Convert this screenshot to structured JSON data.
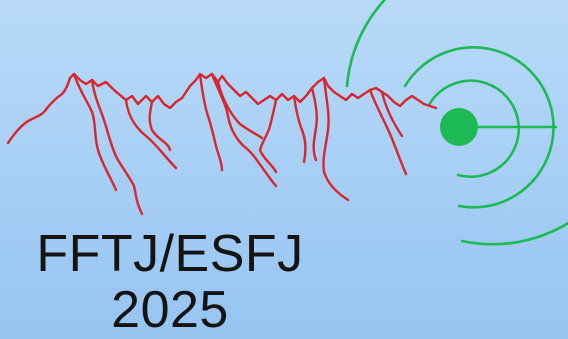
{
  "logo": {
    "line1": "FFTJ/ESFJ",
    "line2": "2025",
    "colors": {
      "background_top": "#b9daf8",
      "background_bottom": "#96c4f1",
      "mountains": "#d8262e",
      "signal": "#1db954",
      "text": "#141414"
    }
  }
}
